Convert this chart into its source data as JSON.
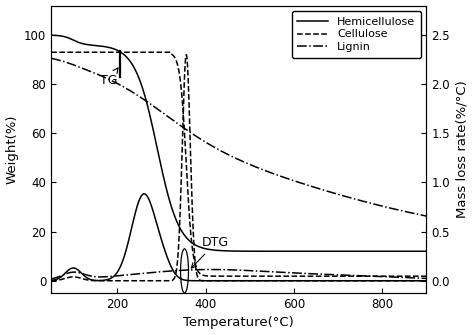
{
  "title": "",
  "xlabel": "Temperature(°C)",
  "ylabel_left": "Weight(%)",
  "ylabel_right": "Mass loss rate(%/°C)",
  "xlim": [
    50,
    900
  ],
  "ylim_left": [
    -5,
    112
  ],
  "ylim_right": [
    -0.125,
    2.8
  ],
  "xticks": [
    200,
    400,
    600,
    800
  ],
  "yticks_left": [
    0,
    20,
    40,
    60,
    80,
    100
  ],
  "yticks_right": [
    0.0,
    0.5,
    1.0,
    1.5,
    2.0,
    2.5
  ],
  "legend_entries": [
    "Hemicellulose",
    "Cellulose",
    "Lignin"
  ],
  "line_color": "black",
  "tg_label": "TG",
  "dtg_label": "DTG",
  "figsize": [
    4.74,
    3.35
  ],
  "dpi": 100
}
